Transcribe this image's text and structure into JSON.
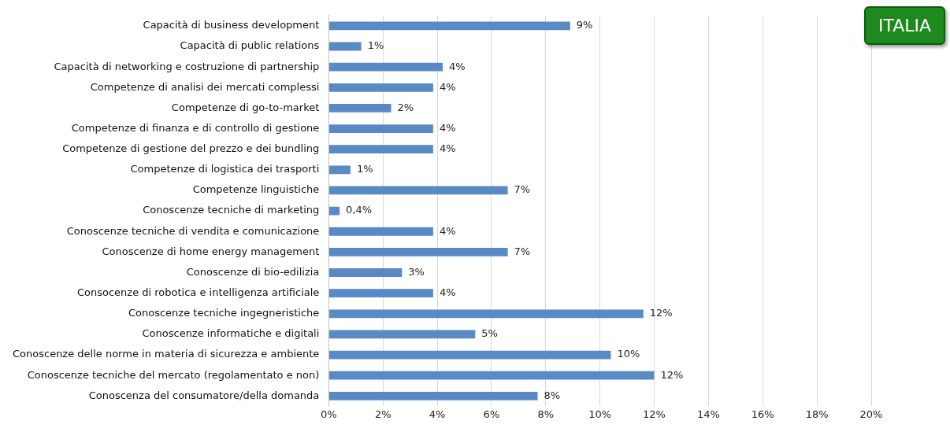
{
  "chart_data": {
    "type": "bar",
    "orientation": "horizontal",
    "categories": [
      "Capacità di business development",
      "Capacità di public relations",
      "Capacità di networking e costruzione di partnership",
      "Competenze di analisi dei mercati complessi",
      "Competenze di go-to-market",
      "Competenze di finanza e di controllo di gestione",
      "Competenze di gestione del prezzo e dei bundling",
      "Competenze di logistica dei trasporti",
      "Competenze linguistiche",
      "Conoscenze tecniche di marketing",
      "Conoscenze tecniche di vendita e comunicazione",
      "Conoscenze di home energy management",
      "Conoscenze di bio-edilizia",
      "Consocenze di robotica e intelligenza artificiale",
      "Conoscenze tecniche ingegneristiche",
      "Conoscenze informatiche e digitali",
      "Conoscenze delle norme in materia di sicurezza e ambiente",
      "Conoscenze tecniche del mercato (regolamentato e non)",
      "Conoscenza del consumatore/della domanda"
    ],
    "values": [
      8.9,
      1.2,
      4.2,
      3.85,
      2.3,
      3.85,
      3.85,
      0.8,
      6.6,
      0.4,
      3.85,
      6.6,
      2.7,
      3.85,
      11.6,
      5.4,
      10.4,
      12.0,
      7.7
    ],
    "value_labels": [
      "9%",
      "1%",
      "4%",
      "4%",
      "2%",
      "4%",
      "4%",
      "1%",
      "7%",
      "0,4%",
      "4%",
      "7%",
      "3%",
      "4%",
      "12%",
      "5%",
      "10%",
      "12%",
      "8%"
    ],
    "color": "#5a8ac6",
    "xlim": [
      0,
      20
    ],
    "xticks": [
      {
        "value": 0,
        "label": "0%"
      },
      {
        "value": 2,
        "label": "2%"
      },
      {
        "value": 4,
        "label": "4%"
      },
      {
        "value": 6,
        "label": "6%"
      },
      {
        "value": 8,
        "label": "8%"
      },
      {
        "value": 10,
        "label": "10%"
      },
      {
        "value": 12,
        "label": "12%"
      },
      {
        "value": 14,
        "label": "14%"
      },
      {
        "value": 16,
        "label": "16%"
      },
      {
        "value": 18,
        "label": "18%"
      },
      {
        "value": 20,
        "label": "20%"
      }
    ],
    "grid": "x",
    "legend": false,
    "annotations": [
      "ITALIA"
    ]
  }
}
